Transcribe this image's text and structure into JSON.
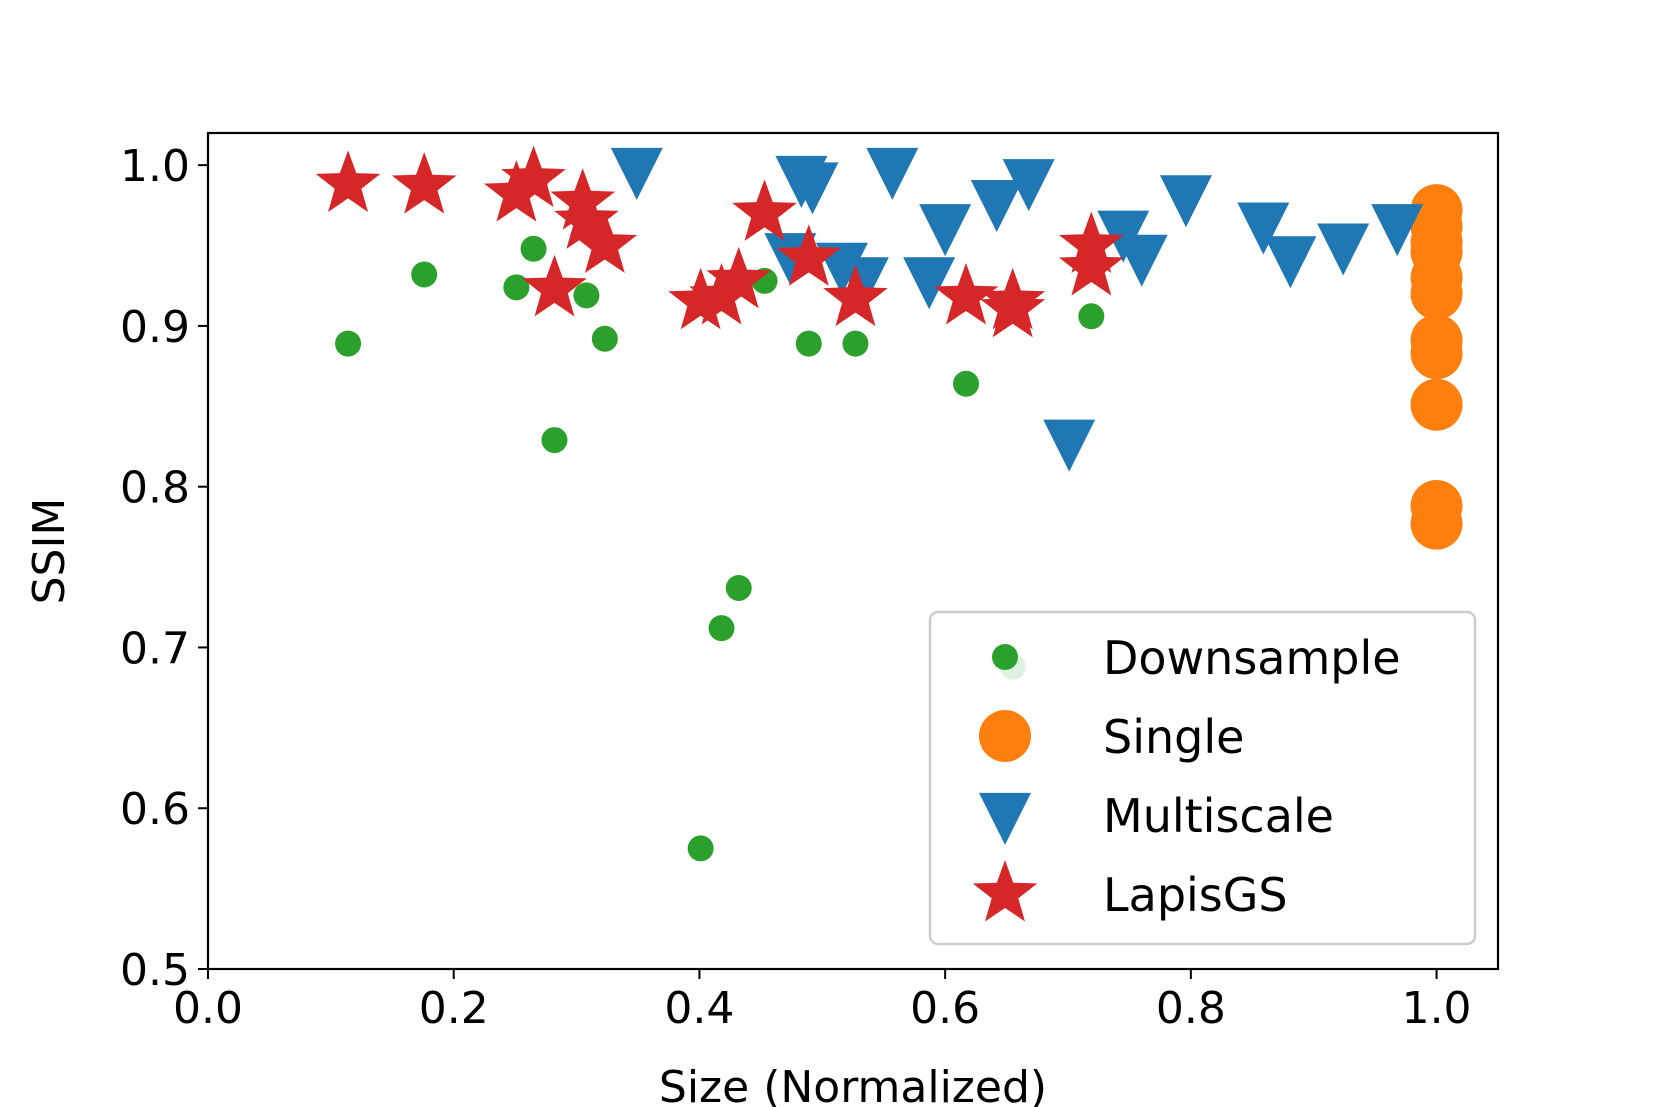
{
  "chart_data": {
    "type": "scatter",
    "title": "",
    "xlabel": "Size (Normalized)",
    "ylabel": "SSIM",
    "xlim": [
      0.0,
      1.05
    ],
    "ylim": [
      0.5,
      1.02
    ],
    "xticks": [
      "0.0",
      "0.2",
      "0.4",
      "0.6",
      "0.8",
      "1.0"
    ],
    "yticks": [
      "0.5",
      "0.6",
      "0.7",
      "0.8",
      "0.9",
      "1.0"
    ],
    "grid": false,
    "legend_position": "lower-right",
    "series": [
      {
        "name": "Downsample",
        "marker": "circle",
        "color": "#2ca02c",
        "points": [
          [
            0.114,
            0.889
          ],
          [
            0.176,
            0.932
          ],
          [
            0.251,
            0.924
          ],
          [
            0.265,
            0.948
          ],
          [
            0.282,
            0.829
          ],
          [
            0.308,
            0.919
          ],
          [
            0.323,
            0.892
          ],
          [
            0.401,
            0.575
          ],
          [
            0.418,
            0.712
          ],
          [
            0.432,
            0.737
          ],
          [
            0.453,
            0.928
          ],
          [
            0.489,
            0.889
          ],
          [
            0.527,
            0.889
          ],
          [
            0.617,
            0.864
          ],
          [
            0.655,
            0.688
          ],
          [
            0.719,
            0.906
          ]
        ]
      },
      {
        "name": "Single",
        "marker": "circle",
        "color": "#ff7f0e",
        "points": [
          [
            1.0,
            0.972
          ],
          [
            1.0,
            0.962
          ],
          [
            1.0,
            0.952
          ],
          [
            1.0,
            0.946
          ],
          [
            1.0,
            0.93
          ],
          [
            1.0,
            0.92
          ],
          [
            1.0,
            0.891
          ],
          [
            1.0,
            0.883
          ],
          [
            1.0,
            0.851
          ],
          [
            1.0,
            0.788
          ],
          [
            1.0,
            0.777
          ]
        ]
      },
      {
        "name": "Multiscale",
        "marker": "triangle-down",
        "color": "#1f77b4",
        "points": [
          [
            0.349,
            0.997
          ],
          [
            0.483,
            0.992
          ],
          [
            0.492,
            0.988
          ],
          [
            0.557,
            0.997
          ],
          [
            0.6,
            0.962
          ],
          [
            0.642,
            0.977
          ],
          [
            0.668,
            0.99
          ],
          [
            0.474,
            0.944
          ],
          [
            0.516,
            0.938
          ],
          [
            0.533,
            0.929
          ],
          [
            0.587,
            0.929
          ],
          [
            0.701,
            0.828
          ],
          [
            0.745,
            0.958
          ],
          [
            0.76,
            0.943
          ],
          [
            0.796,
            0.98
          ],
          [
            0.859,
            0.963
          ],
          [
            0.881,
            0.942
          ],
          [
            0.924,
            0.95
          ],
          [
            0.968,
            0.962
          ]
        ]
      },
      {
        "name": "LapisGS",
        "marker": "star",
        "color": "#d62728",
        "points": [
          [
            0.114,
            0.988
          ],
          [
            0.176,
            0.987
          ],
          [
            0.251,
            0.982
          ],
          [
            0.265,
            0.991
          ],
          [
            0.282,
            0.923
          ],
          [
            0.305,
            0.977
          ],
          [
            0.308,
            0.965
          ],
          [
            0.323,
            0.95
          ],
          [
            0.401,
            0.915
          ],
          [
            0.418,
            0.918
          ],
          [
            0.432,
            0.928
          ],
          [
            0.453,
            0.97
          ],
          [
            0.489,
            0.942
          ],
          [
            0.527,
            0.917
          ],
          [
            0.617,
            0.918
          ],
          [
            0.655,
            0.915
          ],
          [
            0.655,
            0.91
          ],
          [
            0.719,
            0.95
          ],
          [
            0.719,
            0.936
          ]
        ]
      }
    ]
  }
}
